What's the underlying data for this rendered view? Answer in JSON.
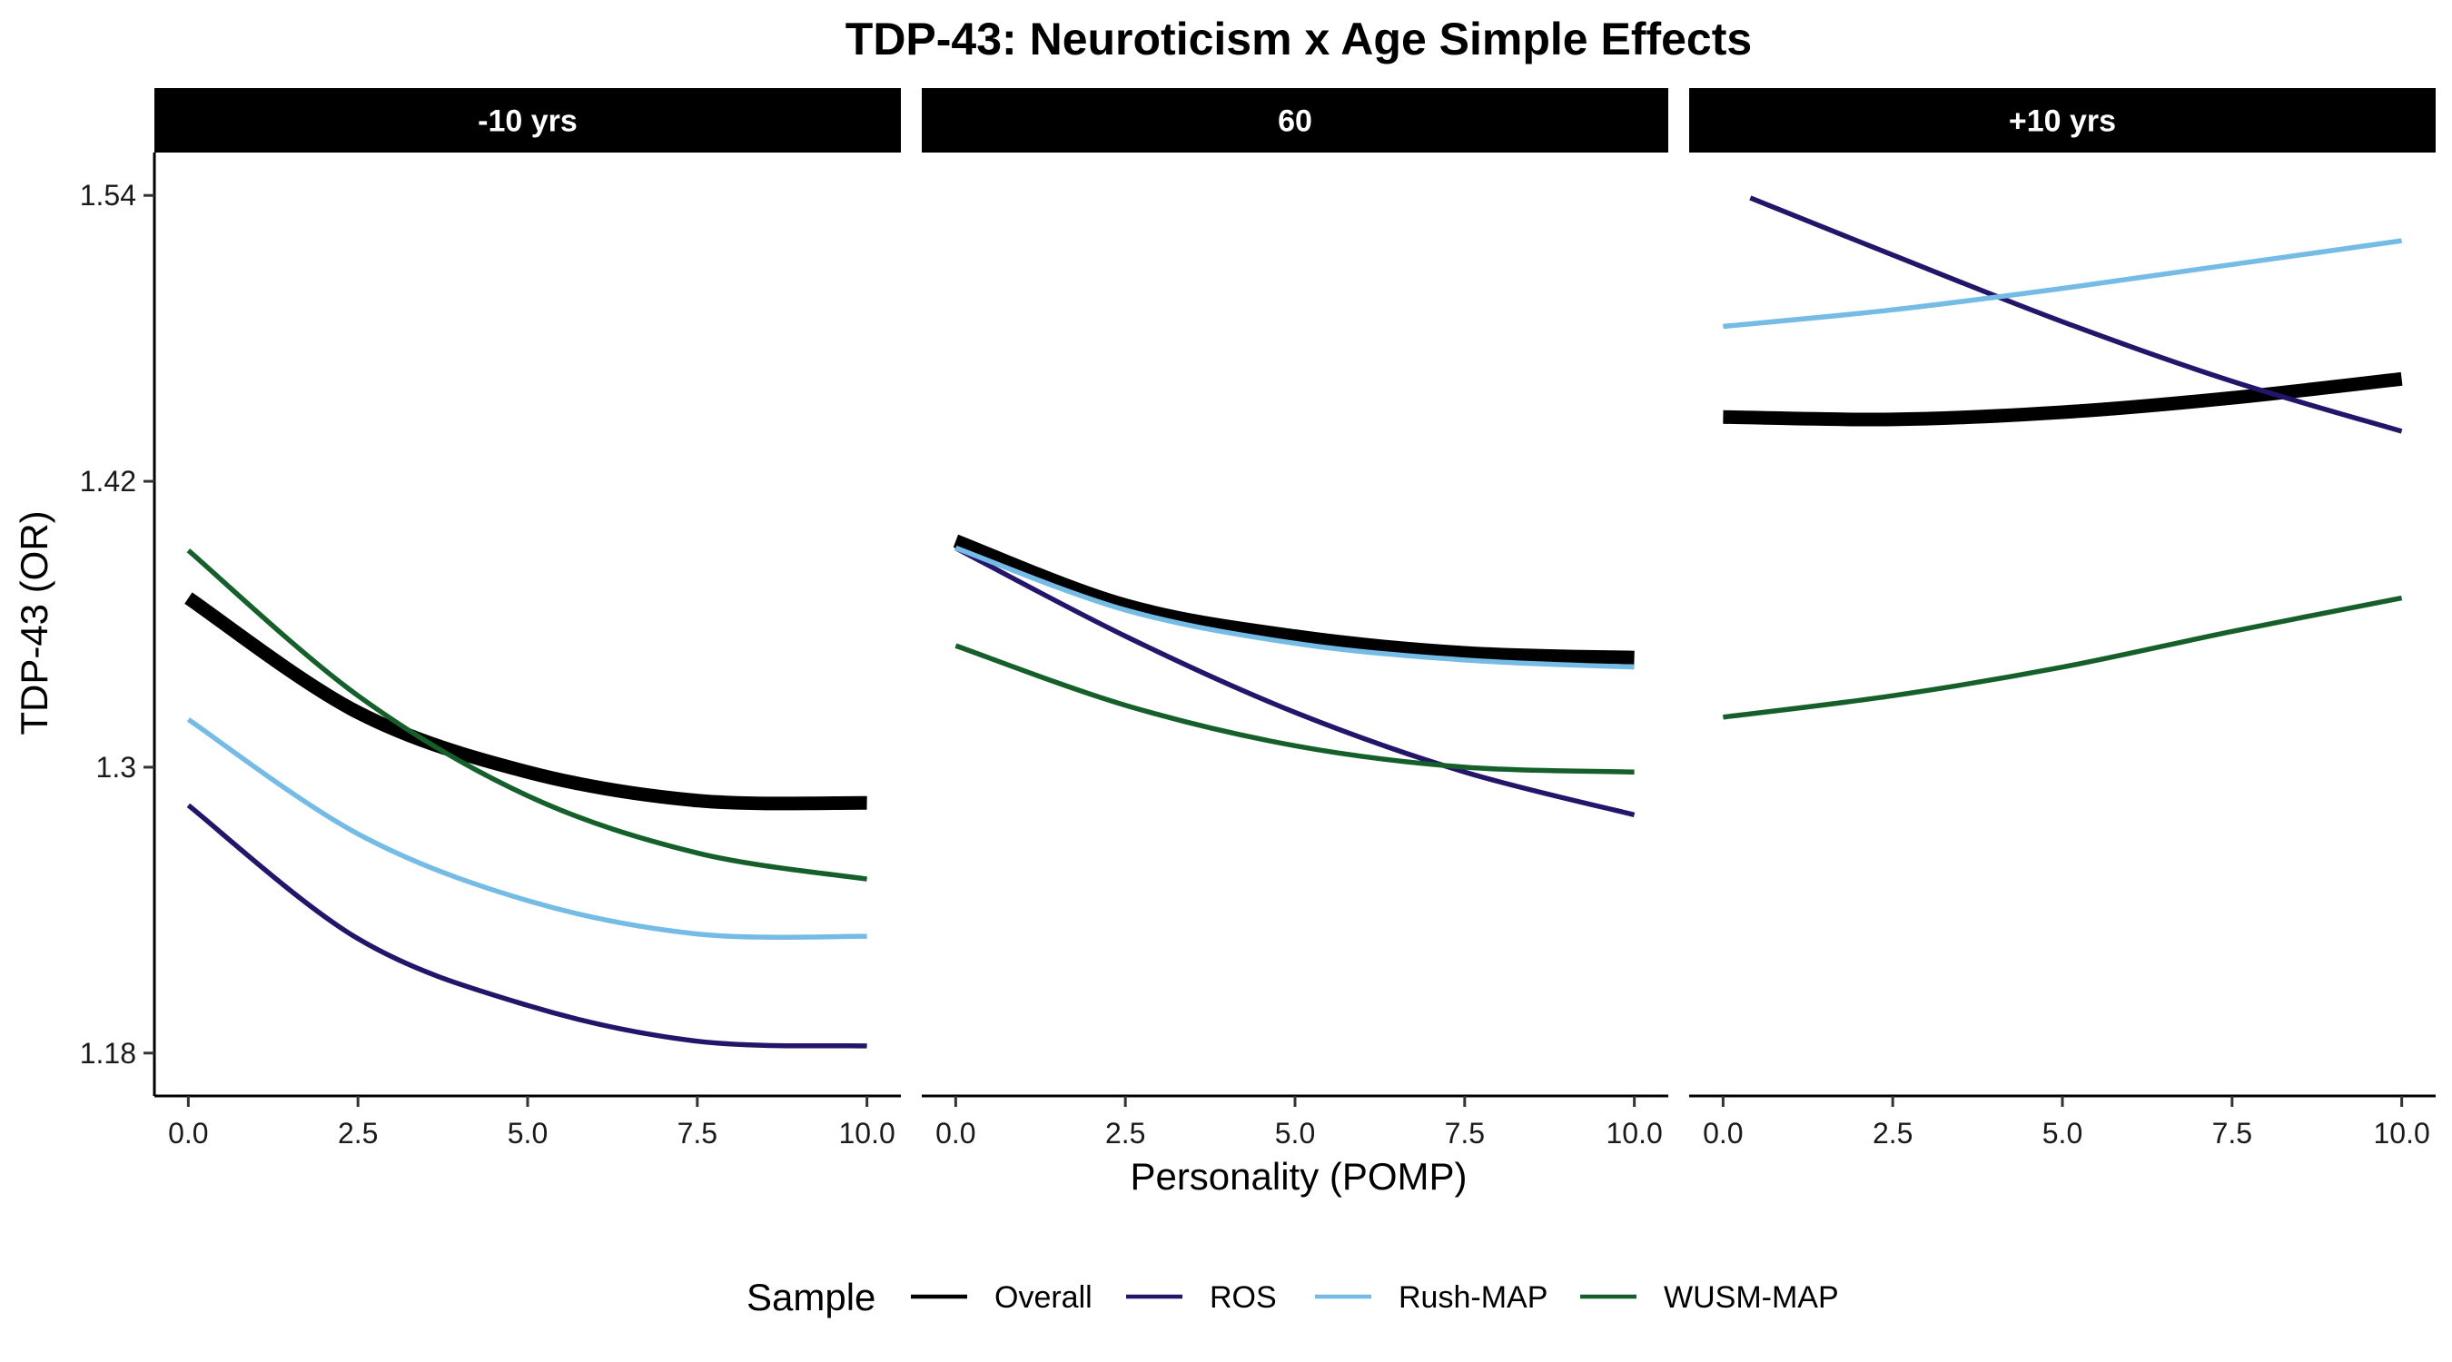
{
  "chart_data": {
    "type": "line",
    "title": "TDP-43: Neuroticism x Age Simple Effects",
    "xlabel": "Personality (POMP)",
    "ylabel": "TDP-43 (OR)",
    "xlim": [
      -0.5,
      10.5
    ],
    "ylim": [
      1.162,
      1.558
    ],
    "x_ticks": [
      0,
      2.5,
      5,
      7.5,
      10
    ],
    "x_tick_labels": [
      "0.0",
      "2.5",
      "5.0",
      "7.5",
      "10.0"
    ],
    "y_ticks": [
      1.18,
      1.3,
      1.42,
      1.54
    ],
    "y_tick_labels": [
      "1.18",
      "1.3",
      "1.42",
      "1.54"
    ],
    "grid": false,
    "legend": {
      "title": "Sample",
      "position": "bottom",
      "entries": [
        "Overall",
        "ROS",
        "Rush-MAP",
        "WUSM-MAP"
      ]
    },
    "colors": {
      "Overall": "#000000",
      "ROS": "#24156b",
      "Rush-MAP": "#74bbe6",
      "WUSM-MAP": "#155f2a"
    },
    "panels": [
      {
        "label": "-10 yrs",
        "series": [
          {
            "name": "Overall",
            "x": [
              0,
              2.5,
              5,
              7.5,
              10
            ],
            "y": [
              1.371,
              1.323,
              1.298,
              1.286,
              1.285
            ]
          },
          {
            "name": "ROS",
            "x": [
              0,
              2.5,
              5,
              7.5,
              10
            ],
            "y": [
              1.284,
              1.228,
              1.2,
              1.185,
              1.183
            ]
          },
          {
            "name": "Rush-MAP",
            "x": [
              0,
              2.5,
              5,
              7.5,
              10
            ],
            "y": [
              1.32,
              1.272,
              1.244,
              1.23,
              1.229
            ]
          },
          {
            "name": "WUSM-MAP",
            "x": [
              0,
              2.5,
              5,
              7.5,
              10
            ],
            "y": [
              1.391,
              1.33,
              1.288,
              1.264,
              1.253
            ]
          }
        ]
      },
      {
        "label": "60",
        "series": [
          {
            "name": "Overall",
            "x": [
              0,
              2.5,
              5,
              7.5,
              10
            ],
            "y": [
              1.395,
              1.368,
              1.355,
              1.348,
              1.346
            ]
          },
          {
            "name": "ROS",
            "x": [
              0,
              2.5,
              5,
              7.5,
              10
            ],
            "y": [
              1.392,
              1.355,
              1.323,
              1.298,
              1.28
            ]
          },
          {
            "name": "Rush-MAP",
            "x": [
              0,
              2.5,
              5,
              7.5,
              10
            ],
            "y": [
              1.392,
              1.366,
              1.352,
              1.345,
              1.342
            ]
          },
          {
            "name": "WUSM-MAP",
            "x": [
              0,
              2.5,
              5,
              7.5,
              10
            ],
            "y": [
              1.351,
              1.326,
              1.309,
              1.3,
              1.298
            ]
          }
        ]
      },
      {
        "label": "+10 yrs",
        "series": [
          {
            "name": "Overall",
            "x": [
              0,
              2.5,
              5,
              7.5,
              10
            ],
            "y": [
              1.447,
              1.446,
              1.449,
              1.455,
              1.463
            ]
          },
          {
            "name": "ROS",
            "x": [
              0.4,
              2.5,
              5,
              7.5,
              10
            ],
            "y": [
              1.539,
              1.515,
              1.487,
              1.462,
              1.441
            ]
          },
          {
            "name": "Rush-MAP",
            "x": [
              0,
              2.5,
              5,
              7.5,
              10
            ],
            "y": [
              1.485,
              1.492,
              1.501,
              1.511,
              1.521
            ]
          },
          {
            "name": "WUSM-MAP",
            "x": [
              0,
              2.5,
              5,
              7.5,
              10
            ],
            "y": [
              1.321,
              1.33,
              1.342,
              1.357,
              1.371
            ]
          }
        ]
      }
    ]
  }
}
